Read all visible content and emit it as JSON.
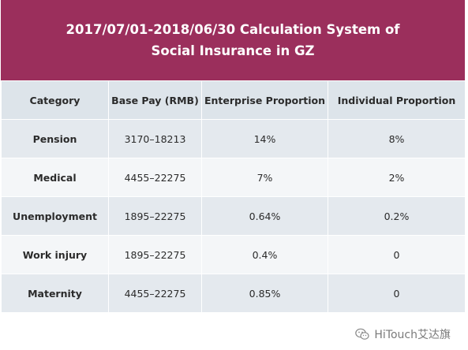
{
  "banner": {
    "title_line1": "2017/07/01-2018/06/30 Calculation System of",
    "title_line2": "Social Insurance in GZ",
    "background": "#9b2f5c"
  },
  "table": {
    "headers": {
      "category": "Category",
      "base_pay": "Base Pay (RMB)",
      "enterprise": "Enterprise Proportion",
      "individual": "Individual Proportion"
    },
    "rows": [
      {
        "category": "Pension",
        "base_pay": "3170–18213",
        "enterprise": "14%",
        "individual": "8%"
      },
      {
        "category": "Medical",
        "base_pay": "4455–22275",
        "enterprise": "7%",
        "individual": "2%"
      },
      {
        "category": "Unemployment",
        "base_pay": "1895–22275",
        "enterprise": "0.64%",
        "individual": "0.2%"
      },
      {
        "category": "Work injury",
        "base_pay": "1895–22275",
        "enterprise": "0.4%",
        "individual": "0"
      },
      {
        "category": "Maternity",
        "base_pay": "4455–22275",
        "enterprise": "0.85%",
        "individual": "0"
      }
    ]
  },
  "watermark": {
    "text": "HiTouch艾达旗",
    "icon": "wechat-icon"
  }
}
